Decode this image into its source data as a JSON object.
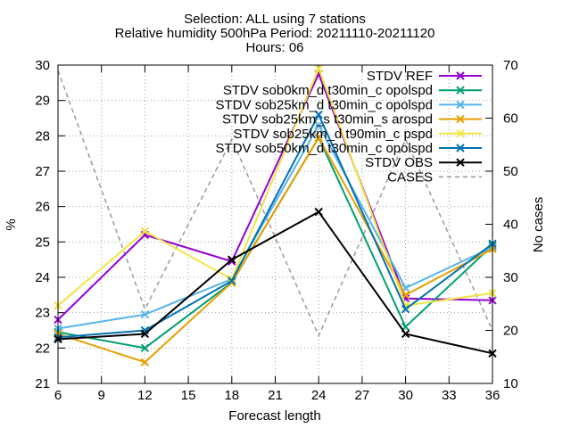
{
  "chart_data": {
    "type": "line",
    "title": [
      "Selection: ALL using      7 stations",
      "Relative humidity 500hPa   Period: 20211110-20211120",
      "Hours: 06"
    ],
    "xlabel": "Forecast length",
    "ylabel": "%",
    "y2label": "No cases",
    "xlim": [
      6,
      36
    ],
    "ylim": [
      21,
      30
    ],
    "y2lim": [
      10,
      70
    ],
    "xticks": [
      6,
      9,
      12,
      15,
      18,
      21,
      24,
      27,
      30,
      33,
      36
    ],
    "yticks": [
      21,
      22,
      23,
      24,
      25,
      26,
      27,
      28,
      29,
      30
    ],
    "y2ticks": [
      10,
      20,
      30,
      40,
      50,
      60,
      70
    ],
    "grid": true,
    "legend_position": "top-right",
    "x": [
      6,
      12,
      18,
      24,
      30,
      36
    ],
    "series": [
      {
        "name": "STDV REF",
        "color": "#9400d3",
        "dash": "solid",
        "marker": "x",
        "axis": "left",
        "values": [
          22.8,
          25.2,
          24.45,
          29.75,
          23.4,
          23.35
        ]
      },
      {
        "name": "STDV sob0km_d t30min_c opolspd",
        "color": "#009e73",
        "dash": "solid",
        "marker": "x",
        "axis": "left",
        "values": [
          22.45,
          22.0,
          23.85,
          27.95,
          22.6,
          24.9
        ]
      },
      {
        "name": "STDV sob25km_d t30min_c opolspd",
        "color": "#56b4e9",
        "dash": "solid",
        "marker": "x",
        "axis": "left",
        "values": [
          22.55,
          22.95,
          23.95,
          28.3,
          23.7,
          24.85
        ]
      },
      {
        "name": "STDV sob25km_s t30min_s arospd",
        "color": "#e69f00",
        "dash": "solid",
        "marker": "x",
        "axis": "left",
        "values": [
          22.4,
          21.6,
          23.85,
          27.95,
          23.5,
          24.8
        ]
      },
      {
        "name": "STDV sob25km_d t90min_c pspd",
        "color": "#f0e442",
        "dash": "solid",
        "marker": "x",
        "axis": "left",
        "values": [
          23.2,
          25.3,
          23.95,
          29.9,
          23.2,
          23.55
        ]
      },
      {
        "name": "STDV sob50km_d t30min_c opolspd",
        "color": "#0072b2",
        "dash": "solid",
        "marker": "x",
        "axis": "left",
        "values": [
          22.3,
          22.5,
          23.9,
          28.6,
          23.1,
          24.95
        ]
      },
      {
        "name": "STDV OBS",
        "color": "#000000",
        "dash": "solid",
        "marker": "x",
        "axis": "left",
        "values": [
          22.25,
          22.4,
          24.5,
          25.85,
          22.4,
          21.85
        ]
      },
      {
        "name": "CASES",
        "color": "#999999",
        "dash": "dashed",
        "marker": "none",
        "axis": "right",
        "values": [
          69,
          24,
          56,
          19,
          56,
          20
        ]
      }
    ]
  }
}
